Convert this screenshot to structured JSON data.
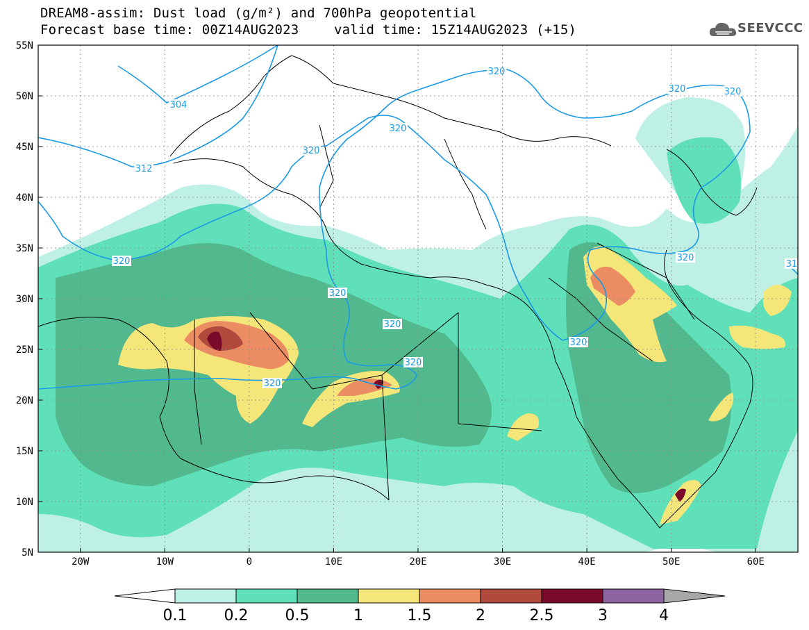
{
  "header": {
    "title_line1": "DREAM8-assim: Dust load (g/m²) and 700hPa geopotential",
    "title_line2": "Forecast base time: 00Z14AUG2023",
    "valid_time": "valid time: 15Z14AUG2023 (+15)",
    "logo_text": "SEEVCCC"
  },
  "map": {
    "variable": "Dust load (g/m²)",
    "lat_labels": [
      "55N",
      "50N",
      "45N",
      "40N",
      "35N",
      "30N",
      "25N",
      "20N",
      "15N",
      "10N",
      "5N"
    ],
    "lon_labels": [
      "20W",
      "10W",
      "0",
      "10E",
      "20E",
      "30E",
      "40E",
      "50E",
      "60E"
    ],
    "lat_range": [
      5,
      55
    ],
    "lon_range": [
      -25,
      65
    ],
    "contour_labels": [
      "304",
      "312",
      "320",
      "320",
      "320",
      "320",
      "320",
      "320",
      "320",
      "320",
      "320",
      "320",
      "320",
      "320",
      "31"
    ],
    "colors": {
      "c01": "#bff0e6",
      "c02": "#5fe0b8",
      "c05": "#52b88e",
      "c1": "#f5e67a",
      "c15": "#ec8c62",
      "c2": "#b04a3c",
      "c25": "#7a0a2a",
      "contour": "#1a9ae6",
      "coast": "#000000"
    }
  },
  "colorbar": {
    "labels": [
      "0.1",
      "0.2",
      "0.5",
      "1",
      "1.5",
      "2",
      "2.5",
      "3",
      "4"
    ],
    "colors": [
      "#bff0e6",
      "#5fe0b8",
      "#52b88e",
      "#f5e67a",
      "#ec8c62",
      "#b04a3c",
      "#7a0a2a",
      "#8c64a0"
    ],
    "under_color": "#ffffff",
    "over_color": "#a8a8a8"
  }
}
